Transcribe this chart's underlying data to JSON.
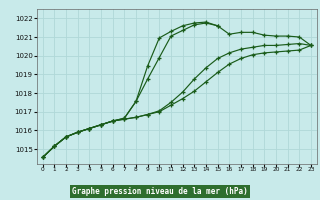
{
  "title": "Graphe pression niveau de la mer (hPa)",
  "bg_color": "#c8eaea",
  "label_bg": "#2e6e2e",
  "grid_color": "#b0d8d8",
  "line_color": "#1a5c1a",
  "x_ticks": [
    0,
    1,
    2,
    3,
    4,
    5,
    6,
    7,
    8,
    9,
    10,
    11,
    12,
    13,
    14,
    15,
    16,
    17,
    18,
    19,
    20,
    21,
    22,
    23
  ],
  "y_ticks": [
    1015,
    1016,
    1017,
    1018,
    1019,
    1020,
    1021,
    1022
  ],
  "ylim": [
    1014.2,
    1022.5
  ],
  "xlim": [
    -0.5,
    23.5
  ],
  "line1_x": [
    0,
    1,
    2,
    3,
    4,
    5,
    6,
    7,
    8,
    9,
    10,
    11,
    12,
    13,
    14,
    15,
    16,
    17,
    18,
    19,
    20,
    21,
    22,
    23
  ],
  "line1": [
    1014.55,
    1015.15,
    1015.65,
    1015.9,
    1016.1,
    1016.3,
    1016.5,
    1016.6,
    1016.7,
    1016.85,
    1017.0,
    1017.35,
    1017.7,
    1018.1,
    1018.6,
    1019.1,
    1019.55,
    1019.85,
    1020.05,
    1020.15,
    1020.2,
    1020.25,
    1020.3,
    1020.55
  ],
  "line2_x": [
    0,
    1,
    2,
    3,
    4,
    5,
    6,
    7,
    8,
    9,
    10,
    11,
    12,
    13,
    14,
    15,
    16,
    17,
    18,
    19,
    20,
    21,
    22,
    23
  ],
  "line2": [
    1014.55,
    1015.15,
    1015.65,
    1015.9,
    1016.1,
    1016.3,
    1016.5,
    1016.6,
    1016.7,
    1016.85,
    1017.05,
    1017.5,
    1018.05,
    1018.75,
    1019.35,
    1019.85,
    1020.15,
    1020.35,
    1020.45,
    1020.55,
    1020.55,
    1020.6,
    1020.65,
    1020.55
  ],
  "line3_x": [
    0,
    1,
    2,
    3,
    4,
    5,
    6,
    7,
    8,
    9,
    10,
    11,
    12,
    13,
    14,
    15
  ],
  "line3": [
    1014.55,
    1015.15,
    1015.65,
    1015.9,
    1016.1,
    1016.3,
    1016.5,
    1016.65,
    1017.55,
    1018.75,
    1019.9,
    1021.05,
    1021.35,
    1021.65,
    1021.75,
    1021.6
  ],
  "line4_x": [
    0,
    1,
    2,
    3,
    4,
    5,
    6,
    7,
    8,
    9,
    10,
    11,
    12,
    13,
    14,
    15,
    16,
    17,
    18,
    19,
    20,
    21,
    22,
    23
  ],
  "line4": [
    1014.55,
    1015.15,
    1015.65,
    1015.9,
    1016.1,
    1016.3,
    1016.5,
    1016.65,
    1017.55,
    1019.45,
    1020.95,
    1021.3,
    1021.6,
    1021.75,
    1021.8,
    1021.6,
    1021.15,
    1021.25,
    1021.25,
    1021.1,
    1021.05,
    1021.05,
    1021.0,
    1020.55
  ]
}
